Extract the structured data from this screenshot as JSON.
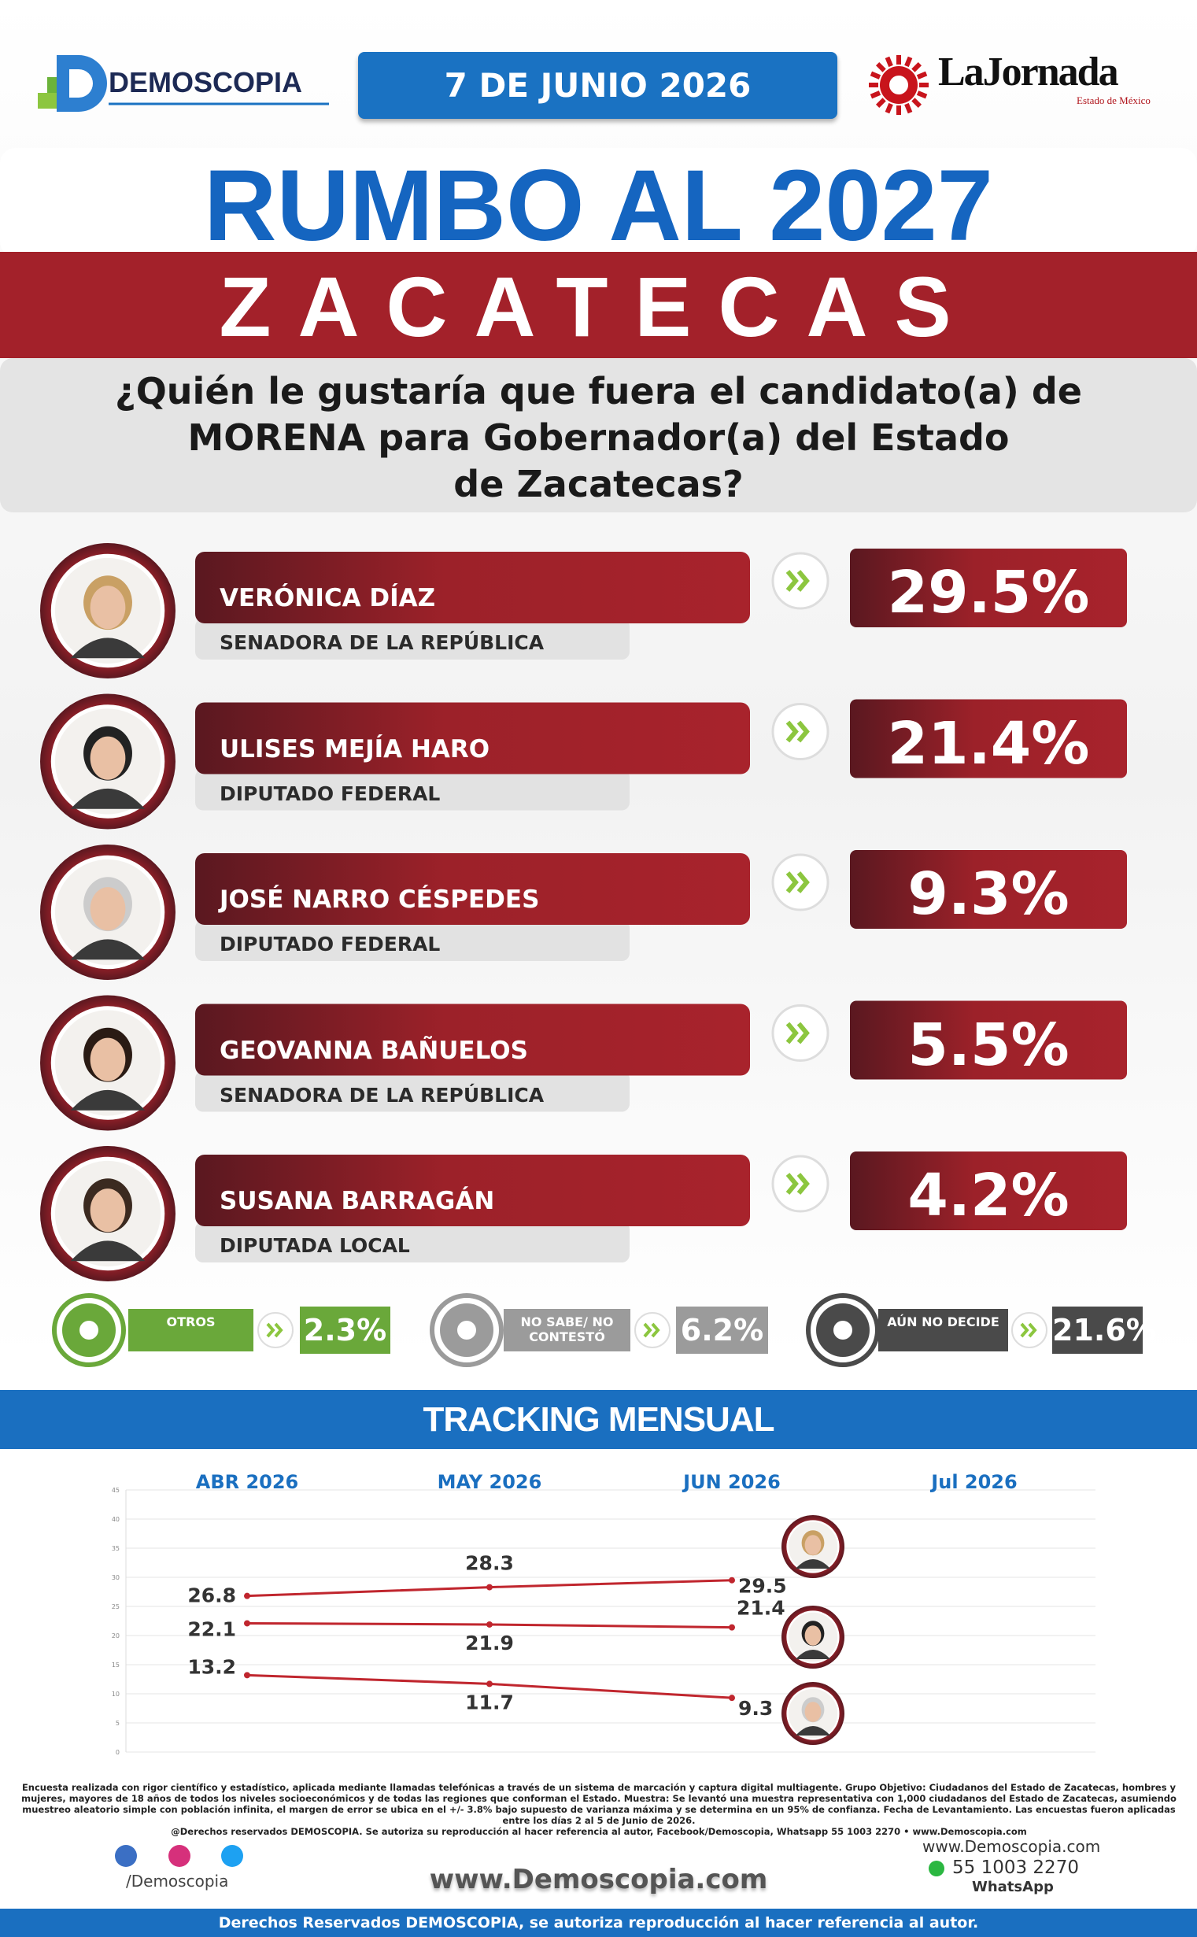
{
  "header": {
    "brand": "DEMOSCOPIA",
    "date": "7 DE JUNIO 2026",
    "partner": "LaJornada",
    "partner_sub": "Estado de México"
  },
  "title": "RUMBO AL 2027",
  "state": "ZACATECAS",
  "question": [
    "¿Quién le gustaría que fuera el candidato(a) de",
    "MORENA para Gobernador(a) del Estado",
    "de Zacatecas?"
  ],
  "candidates": [
    {
      "name": "VERÓNICA DÍAZ",
      "role": "SENADORA DE LA REPÚBLICA",
      "result": "29.5%"
    },
    {
      "name": "ULISES MEJÍA HARO",
      "role": "DIPUTADO FEDERAL",
      "result": "21.4%"
    },
    {
      "name": "JOSÉ NARRO CÉSPEDES",
      "role": "DIPUTADO FEDERAL",
      "result": "9.3%"
    },
    {
      "name": "GEOVANNA BAÑUELOS",
      "role": "SENADORA DE LA REPÚBLICA",
      "result": "5.5%"
    },
    {
      "name": "SUSANA BARRAGÁN",
      "role": "DIPUTADA LOCAL",
      "result": "4.2%"
    }
  ],
  "others": [
    {
      "label": "OTROS",
      "result": "2.3%",
      "color": "#6aa83a"
    },
    {
      "label": "NO SABE/ NO CONTESTÓ",
      "result": "6.2%",
      "color": "#9b9b9b"
    },
    {
      "label": "AÚN NO DECIDE",
      "result": "21.6%",
      "color": "#4a4a4a"
    }
  ],
  "tracking_title": "TRACKING MENSUAL",
  "chart_data": {
    "type": "line",
    "categories": [
      "ABR 2026",
      "MAY 2026",
      "JUN 2026",
      "Jul 2026"
    ],
    "series": [
      {
        "color": "#c0262e",
        "values": [
          26.8,
          28.3,
          29.5,
          null
        ]
      },
      {
        "color": "#c0262e",
        "values": [
          22.1,
          21.9,
          21.4,
          null
        ]
      },
      {
        "color": "#c0262e",
        "values": [
          13.2,
          11.7,
          9.3,
          null
        ]
      }
    ],
    "ylim": [
      0,
      45
    ],
    "yticks": [
      0,
      5,
      10,
      15,
      20,
      25,
      30,
      35,
      40,
      45
    ],
    "grid": true
  },
  "footer": {
    "note": "Encuesta realizada con rigor científico y estadístico, aplicada mediante llamadas telefónicas a través de un sistema de marcación y captura digital multiagente. Grupo Objetivo: Ciudadanos del Estado de Zacatecas, hombres y mujeres, mayores de 18 años de todos los niveles socioeconómicos y de todas las regiones que conforman el Estado. Muestra: Se levantó una muestra representativa con 1,000 ciudadanos del Estado de Zacatecas, asumiendo muestreo aleatorio simple con población infinita, el margen de error se ubica en el +/- 3.8% bajo supuesto de varianza máxima y se determina en un 95% de confianza. Fecha de Levantamiento. Las encuestas fueron aplicadas entre los días 2 al 5 de Junio de 2026.",
    "rights_note": "@Derechos reservados DEMOSCOPIA. Se autoriza su reproducción al hacer referencia al autor, Facebook/Demoscopia, Whatsapp 55 1003 2270 • www.Demoscopia.com",
    "social": "/Demoscopia",
    "website": "www.Demoscopia.com",
    "contact_web": "www.Demoscopia.com",
    "phone": "55 1003 2270",
    "phone_label": "WhatsApp",
    "rights": "Derechos Reservados DEMOSCOPIA, se autoriza reproducción al hacer referencia al autor."
  }
}
